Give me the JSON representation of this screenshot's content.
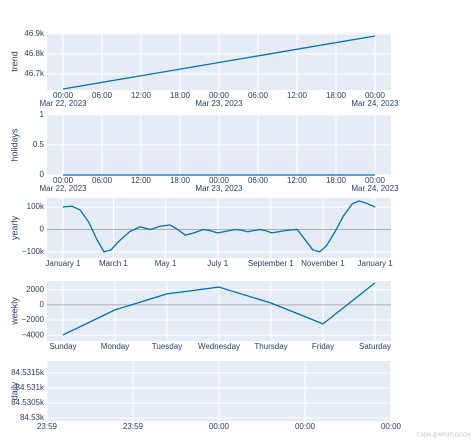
{
  "chart_data": [
    {
      "type": "line",
      "ylabel": "trend",
      "color": "#0072B2",
      "x": [
        "2023-03-22T00:00",
        "2023-03-24T00:00"
      ],
      "values": [
        46625,
        46890
      ],
      "xlim": [
        "2023-03-21T21:32",
        "2023-03-24T02:28"
      ],
      "ylim": [
        46620,
        46905
      ],
      "xticks": [
        {
          "value": "2023-03-22T00:00",
          "label": "00:00",
          "date": "Mar 22, 2023"
        },
        {
          "value": "2023-03-22T06:00",
          "label": "06:00"
        },
        {
          "value": "2023-03-22T12:00",
          "label": "12:00"
        },
        {
          "value": "2023-03-22T18:00",
          "label": "18:00"
        },
        {
          "value": "2023-03-23T00:00",
          "label": "00:00",
          "date": "Mar 23, 2023"
        },
        {
          "value": "2023-03-23T06:00",
          "label": "06:00"
        },
        {
          "value": "2023-03-23T12:00",
          "label": "12:00"
        },
        {
          "value": "2023-03-23T18:00",
          "label": "18:00"
        },
        {
          "value": "2023-03-24T00:00",
          "label": "00:00",
          "date": "Mar 24, 2023"
        }
      ],
      "yticks": [
        {
          "value": 46700,
          "label": "46.7k"
        },
        {
          "value": 46800,
          "label": "46.8k"
        },
        {
          "value": 46900,
          "label": "46.9k"
        }
      ]
    },
    {
      "type": "line",
      "ylabel": "holidays",
      "color": "#0072B2",
      "x": [
        "2023-03-22T00:00",
        "2023-03-24T00:00"
      ],
      "values": [
        0,
        0
      ],
      "xlim": [
        "2023-03-21T21:32",
        "2023-03-24T02:28"
      ],
      "ylim": [
        0,
        1
      ],
      "xticks": [
        {
          "value": "2023-03-22T00:00",
          "label": "00:00",
          "date": "Mar 22, 2023"
        },
        {
          "value": "2023-03-22T06:00",
          "label": "06:00"
        },
        {
          "value": "2023-03-22T12:00",
          "label": "12:00"
        },
        {
          "value": "2023-03-22T18:00",
          "label": "18:00"
        },
        {
          "value": "2023-03-23T00:00",
          "label": "00:00",
          "date": "Mar 23, 2023"
        },
        {
          "value": "2023-03-23T06:00",
          "label": "06:00"
        },
        {
          "value": "2023-03-23T12:00",
          "label": "12:00"
        },
        {
          "value": "2023-03-23T18:00",
          "label": "18:00"
        },
        {
          "value": "2023-03-24T00:00",
          "label": "00:00",
          "date": "Mar 24, 2023"
        }
      ],
      "yticks": [
        0,
        0.5,
        1
      ]
    },
    {
      "type": "line",
      "ylabel": "yearly",
      "color": "#0072B2",
      "zeroline": true,
      "x": [
        0,
        10,
        20,
        30,
        40,
        48,
        56,
        66,
        78,
        90,
        102,
        114,
        125,
        134,
        143,
        153,
        164,
        172,
        181,
        191,
        201,
        208,
        216,
        223,
        230,
        237,
        244,
        252,
        260,
        267,
        274,
        282,
        292,
        300,
        308,
        318,
        328,
        338,
        346,
        354,
        365
      ],
      "values": [
        100000,
        104000,
        87000,
        33000,
        -47000,
        -100000,
        -91000,
        -50000,
        -10000,
        12000,
        0,
        15000,
        20000,
        0,
        -25000,
        -15000,
        0,
        -5000,
        -15000,
        -8000,
        0,
        -3000,
        -10000,
        -5000,
        0,
        -5000,
        -15000,
        -10000,
        -5000,
        -2000,
        0,
        -40000,
        -90000,
        -100000,
        -73000,
        -11000,
        60000,
        113000,
        127000,
        118000,
        100000
      ],
      "xlim": [
        -18.7,
        383.6
      ],
      "ylim": [
        -127000,
        140000
      ],
      "xticks": [
        {
          "value": 0,
          "label": "January 1"
        },
        {
          "value": 59,
          "label": "March 1"
        },
        {
          "value": 120,
          "label": "May 1"
        },
        {
          "value": 181,
          "label": "July 1"
        },
        {
          "value": 243,
          "label": "September 1"
        },
        {
          "value": 304,
          "label": "November 1"
        },
        {
          "value": 365,
          "label": "January 1"
        }
      ],
      "yticks": [
        {
          "value": -100000,
          "label": "−100k"
        },
        0,
        {
          "value": 100000,
          "label": "100k"
        }
      ]
    },
    {
      "type": "line",
      "ylabel": "weekly",
      "color": "#0072B2",
      "zeroline": true,
      "categories": [
        "Sunday",
        "Monday",
        "Tuesday",
        "Wednesday",
        "Thursday",
        "Friday",
        "Saturday"
      ],
      "values": [
        -3950,
        -650,
        1450,
        2350,
        250,
        -2500,
        2900
      ],
      "ylim": [
        -4750,
        3150
      ],
      "yticks": [
        {
          "value": -4000,
          "label": "−4000"
        },
        {
          "value": -2000,
          "label": "−2000"
        },
        0,
        2000
      ]
    },
    {
      "type": "empty",
      "ylabel": "daily",
      "categories": [
        "23:59",
        "23:59",
        "00:00",
        "00:00",
        "00:00"
      ],
      "ylim": [
        84529.9,
        84531.9
      ],
      "yticks": [
        {
          "value": 84530,
          "label": "84.53k"
        },
        {
          "value": 84530.5,
          "label": "84.5305k"
        },
        {
          "value": 84531,
          "label": "84.531k"
        },
        {
          "value": 84531.5,
          "label": "84.5315k"
        }
      ]
    }
  ],
  "footer": "CSDN @WPUTLGGCH"
}
